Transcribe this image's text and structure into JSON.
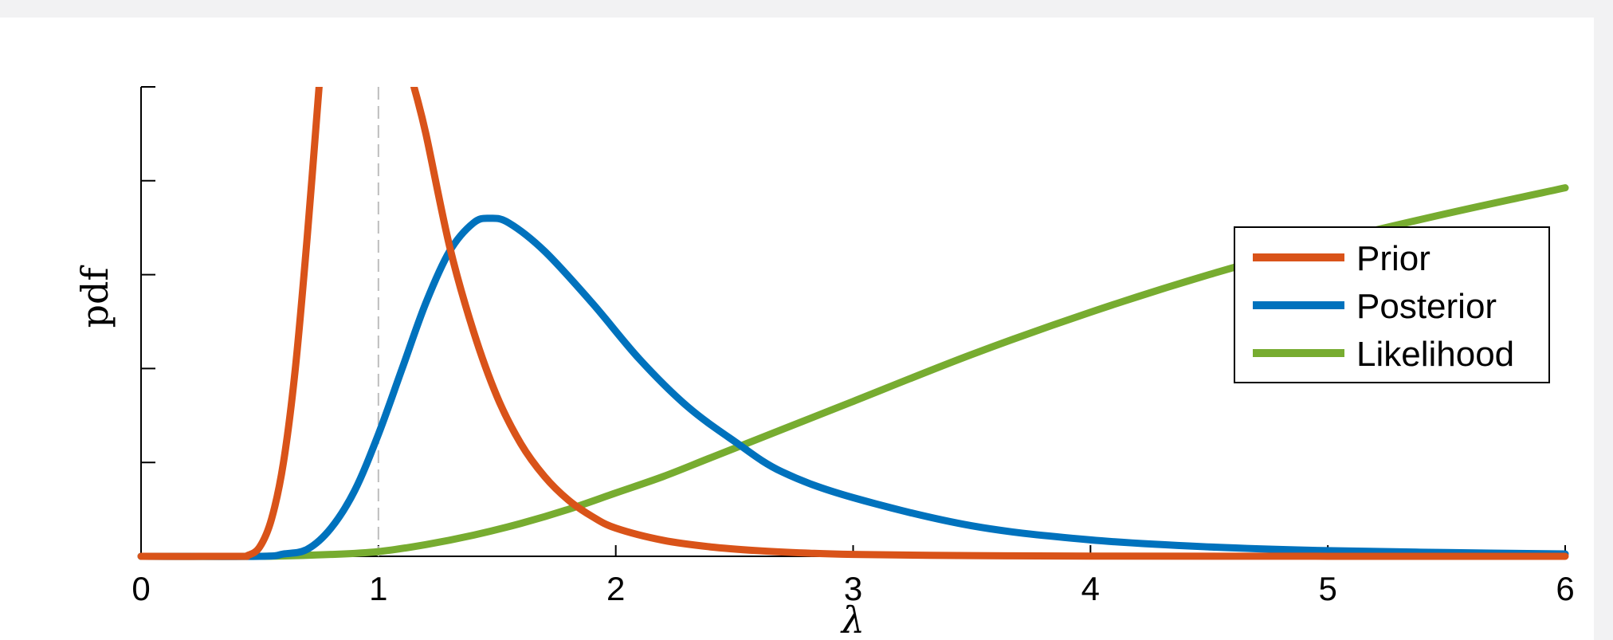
{
  "chart_data": {
    "type": "line",
    "title": "",
    "xlabel": "λ",
    "ylabel": "pdf",
    "xlim": [
      0,
      6
    ],
    "ylim": [
      0,
      1.0
    ],
    "x_ticks": [
      "0",
      "1",
      "2",
      "3",
      "4",
      "5",
      "6"
    ],
    "y_tick_labels_shown": false,
    "grid": false,
    "legend_position": "right",
    "reference_line": {
      "x": 1,
      "style": "dashed",
      "color": "#bdbdbd"
    },
    "series": [
      {
        "name": "Prior",
        "color": "#d95319",
        "x": [
          0,
          0.4,
          0.45,
          0.5,
          0.55,
          0.6,
          0.65,
          0.7,
          0.75,
          1.15,
          1.2,
          1.3,
          1.4,
          1.5,
          1.6,
          1.7,
          1.8,
          1.9,
          2.0,
          2.2,
          2.4,
          2.6,
          2.8,
          3.0,
          3.5,
          4.0,
          5.0,
          6.0
        ],
        "y": [
          0,
          0.0,
          0.002,
          0.02,
          0.08,
          0.2,
          0.4,
          0.68,
          1.0,
          1.0,
          0.9,
          0.66,
          0.48,
          0.34,
          0.24,
          0.17,
          0.12,
          0.085,
          0.06,
          0.034,
          0.02,
          0.012,
          0.007,
          0.004,
          0.0015,
          0.0005,
          0.0001,
          0.0
        ]
      },
      {
        "name": "Posterior",
        "color": "#0072bd",
        "x": [
          0,
          0.5,
          0.6,
          0.7,
          0.8,
          0.9,
          1.0,
          1.1,
          1.2,
          1.3,
          1.4,
          1.47,
          1.55,
          1.7,
          1.9,
          2.1,
          2.3,
          2.5,
          2.7,
          3.0,
          3.5,
          4.0,
          4.5,
          5.0,
          5.5,
          6.0
        ],
        "y": [
          0,
          0.0,
          0.005,
          0.015,
          0.06,
          0.14,
          0.26,
          0.4,
          0.54,
          0.65,
          0.71,
          0.72,
          0.71,
          0.65,
          0.54,
          0.42,
          0.32,
          0.245,
          0.18,
          0.125,
          0.065,
          0.035,
          0.02,
          0.012,
          0.008,
          0.005
        ]
      },
      {
        "name": "Likelihood",
        "color": "#77ac30",
        "x": [
          0,
          0.5,
          0.8,
          1.0,
          1.2,
          1.4,
          1.6,
          1.8,
          2.0,
          2.2,
          2.4,
          2.7,
          3.0,
          3.5,
          4.0,
          4.5,
          5.0,
          5.5,
          6.0
        ],
        "y": [
          0,
          0.0,
          0.004,
          0.01,
          0.025,
          0.045,
          0.07,
          0.1,
          0.135,
          0.17,
          0.21,
          0.27,
          0.33,
          0.43,
          0.52,
          0.6,
          0.67,
          0.73,
          0.785
        ]
      }
    ]
  }
}
